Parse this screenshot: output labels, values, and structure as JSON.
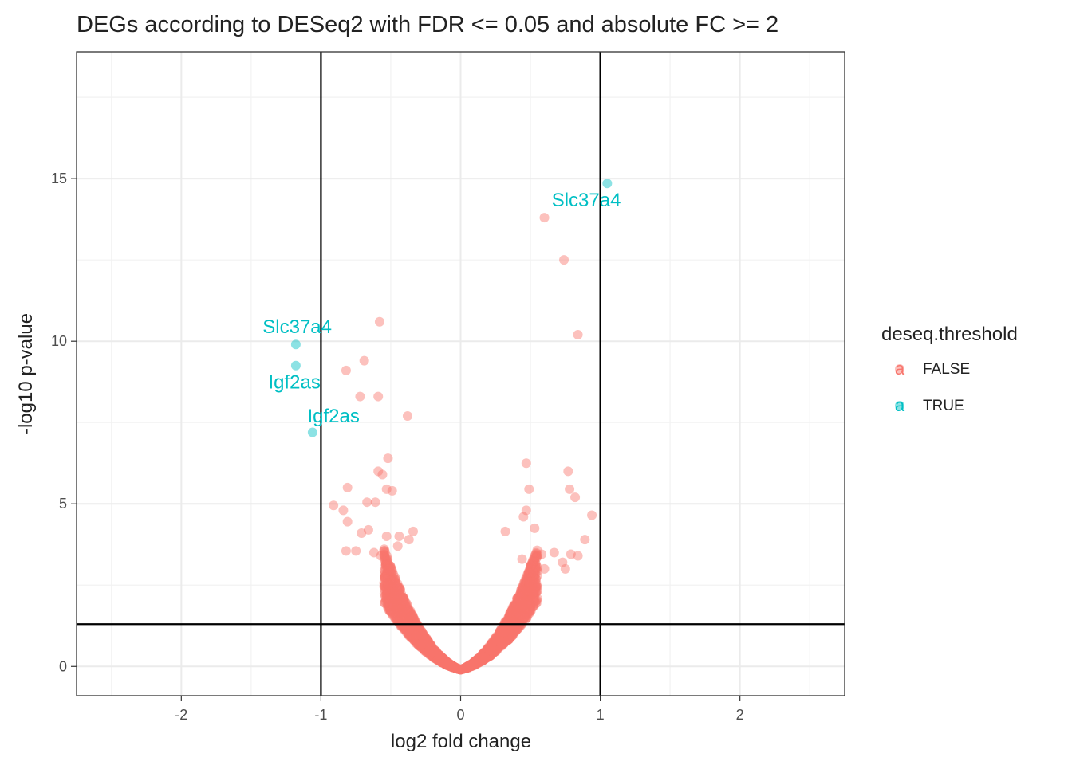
{
  "chart_data": {
    "type": "scatter",
    "title": "DEGs according to DESeq2 with FDR <= 0.05 and absolute FC >= 2",
    "xlabel": "log2 fold change",
    "ylabel": "-log10 p-value",
    "xlim": [
      -2.75,
      2.75
    ],
    "ylim": [
      -0.9,
      18.9
    ],
    "xticks": [
      -2,
      -1,
      0,
      1,
      2
    ],
    "xtick_labels": [
      "-2",
      "-1",
      "0",
      "1",
      "2"
    ],
    "yticks": [
      0,
      5,
      10,
      15
    ],
    "ytick_labels": [
      "0",
      "5",
      "10",
      "15"
    ],
    "grid": true,
    "reference_lines": {
      "vertical": [
        -1,
        1
      ],
      "horizontal": [
        1.3
      ]
    },
    "legend": {
      "title": "deseq.threshold",
      "position": "right",
      "key_glyph": "a",
      "entries": [
        {
          "label": "FALSE",
          "color": "#F8766D"
        },
        {
          "label": "TRUE",
          "color": "#00BFC4"
        }
      ]
    },
    "series": [
      {
        "name": "FALSE",
        "color": "#F8766D",
        "points": [
          [
            0.6,
            13.8
          ],
          [
            0.74,
            12.5
          ],
          [
            0.84,
            10.2
          ],
          [
            -0.58,
            10.6
          ],
          [
            -0.69,
            9.4
          ],
          [
            -0.82,
            9.1
          ],
          [
            -0.72,
            8.3
          ],
          [
            -0.59,
            8.3
          ],
          [
            -0.38,
            7.7
          ],
          [
            0.47,
            6.25
          ],
          [
            -0.52,
            6.4
          ],
          [
            0.77,
            6.0
          ],
          [
            -0.59,
            6.0
          ],
          [
            -0.56,
            5.9
          ],
          [
            -0.81,
            5.5
          ],
          [
            -0.53,
            5.45
          ],
          [
            -0.49,
            5.4
          ],
          [
            0.49,
            5.45
          ],
          [
            0.78,
            5.45
          ],
          [
            -0.91,
            4.95
          ],
          [
            -0.84,
            4.8
          ],
          [
            -0.67,
            5.05
          ],
          [
            -0.61,
            5.05
          ],
          [
            0.47,
            4.8
          ],
          [
            0.82,
            5.2
          ],
          [
            0.94,
            4.65
          ],
          [
            -0.81,
            4.45
          ],
          [
            -0.66,
            4.2
          ],
          [
            -0.71,
            4.1
          ],
          [
            0.32,
            4.15
          ],
          [
            0.89,
            3.9
          ],
          [
            -0.82,
            3.55
          ],
          [
            -0.75,
            3.55
          ],
          [
            0.45,
            4.6
          ],
          [
            0.53,
            4.25
          ],
          [
            -0.62,
            3.5
          ],
          [
            -0.57,
            3.4
          ],
          [
            0.58,
            3.45
          ],
          [
            0.67,
            3.5
          ],
          [
            -0.37,
            3.9
          ],
          [
            -0.34,
            4.15
          ],
          [
            0.44,
            3.3
          ],
          [
            0.6,
            3.0
          ],
          [
            -0.53,
            4.0
          ],
          [
            -0.44,
            4.0
          ],
          [
            -0.45,
            3.7
          ],
          [
            0.73,
            3.2
          ],
          [
            0.84,
            3.4
          ],
          [
            0.75,
            3.0
          ],
          [
            0.79,
            3.45
          ]
        ]
      },
      {
        "name": "TRUE",
        "color": "#00BFC4",
        "points": [
          [
            1.05,
            14.85
          ],
          [
            -1.18,
            9.9
          ],
          [
            -1.18,
            9.25
          ],
          [
            -1.06,
            7.2
          ]
        ]
      }
    ],
    "annotations": [
      {
        "text": "Slc37a4",
        "x": 0.9,
        "y": 14.15
      },
      {
        "text": "Slc37a4",
        "x": -1.17,
        "y": 10.25
      },
      {
        "text": "Igf2as",
        "x": -1.19,
        "y": 8.55
      },
      {
        "text": "Igf2as",
        "x": -0.91,
        "y": 7.5
      }
    ]
  }
}
